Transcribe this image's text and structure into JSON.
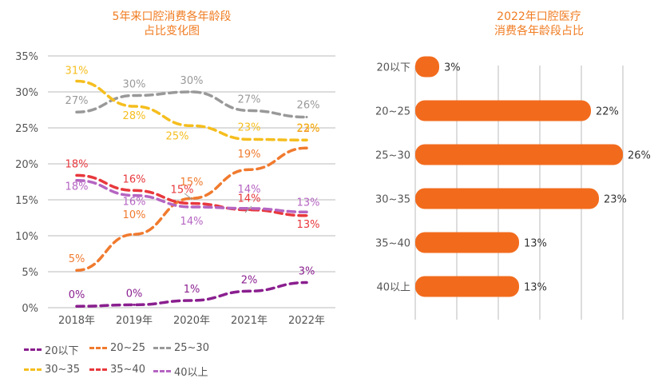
{
  "colors": {
    "title": "#F07C22",
    "axis_text": "#555555",
    "grid": "#BBBBBB",
    "bar": "#F26B1D"
  },
  "left_title": {
    "line1": "5年来口腔消费各年龄段",
    "line2": "占比变化图"
  },
  "right_title": {
    "line1": "2022年口腔医疗",
    "line2": "消费各年龄段占比"
  },
  "chart_data": [
    {
      "type": "line",
      "title": "5年来口腔消费各年龄段占比变化图",
      "categories": [
        "2018年",
        "2019年",
        "2020年",
        "2021年",
        "2022年"
      ],
      "ylim": [
        0,
        35
      ],
      "yticks": [
        "0%",
        "5%",
        "10%",
        "15%",
        "20%",
        "25%",
        "30%",
        "35%"
      ],
      "grid": true,
      "legend_position": "bottom",
      "series": [
        {
          "name": "20以下",
          "color": "#8A1F8F",
          "values": [
            0.2,
            0.4,
            1.0,
            2.3,
            3.5
          ],
          "labels": [
            "0%",
            "0%",
            "1%",
            "2%",
            "3%"
          ]
        },
        {
          "name": "20~25",
          "color": "#F07A2E",
          "values": [
            5.2,
            10.2,
            15.2,
            19.2,
            22.2
          ],
          "labels": [
            "5%",
            "10%",
            "15%",
            "19%",
            "22%"
          ]
        },
        {
          "name": "25~30",
          "color": "#999999",
          "values": [
            27.2,
            29.5,
            30.0,
            27.4,
            26.5
          ],
          "labels": [
            "27%",
            "30%",
            "30%",
            "27%",
            "26%"
          ]
        },
        {
          "name": "30~35",
          "color": "#F5BE1E",
          "values": [
            31.5,
            28.0,
            25.3,
            23.4,
            23.3
          ],
          "labels": [
            "31%",
            "28%",
            "25%",
            "23%",
            "23%"
          ]
        },
        {
          "name": "35~40",
          "color": "#E8383D",
          "values": [
            18.4,
            16.3,
            14.5,
            13.6,
            12.8
          ],
          "labels": [
            "18%",
            "16%",
            "15%",
            "14%",
            "13%"
          ]
        },
        {
          "name": "40以上",
          "color": "#B565C2",
          "values": [
            17.7,
            15.6,
            14.0,
            13.8,
            13.3
          ],
          "labels": [
            "18%",
            "16%",
            "14%",
            "14%",
            "13%"
          ]
        }
      ]
    },
    {
      "type": "bar",
      "orientation": "horizontal",
      "title": "2022年口腔医疗消费各年龄段占比",
      "categories": [
        "20以下",
        "20~25",
        "25~30",
        "30~35",
        "35~40",
        "40以上"
      ],
      "values": [
        3,
        22,
        26,
        23,
        13,
        13
      ],
      "labels": [
        "3%",
        "22%",
        "26%",
        "23%",
        "13%",
        "13%"
      ],
      "xlim": [
        0,
        26
      ],
      "grid": true
    }
  ]
}
